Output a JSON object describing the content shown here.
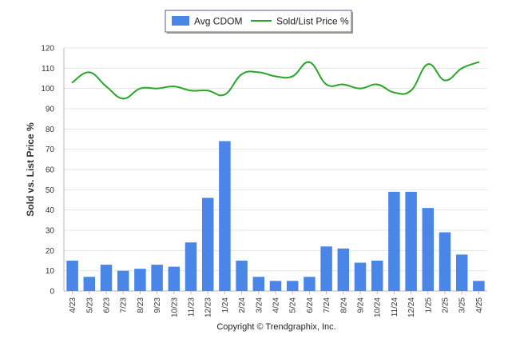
{
  "chart_data": {
    "type": "bar",
    "ylabel": "Sold vs. List Price %",
    "ylim": [
      0,
      120
    ],
    "yticks": [
      0,
      10,
      20,
      30,
      40,
      50,
      60,
      70,
      80,
      90,
      100,
      110,
      120
    ],
    "grid": true,
    "legend_position": "top-center",
    "categories": [
      "4/23",
      "5/23",
      "6/23",
      "7/23",
      "8/23",
      "9/23",
      "10/23",
      "11/23",
      "12/23",
      "1/24",
      "2/24",
      "3/24",
      "4/24",
      "5/24",
      "6/24",
      "7/24",
      "8/24",
      "9/24",
      "10/24",
      "11/24",
      "12/24",
      "1/25",
      "2/25",
      "3/25",
      "4/25"
    ],
    "series": [
      {
        "name": "Avg CDOM",
        "type": "bar",
        "color": "#4a86e8",
        "values": [
          15,
          7,
          13,
          10,
          11,
          13,
          12,
          24,
          46,
          74,
          15,
          7,
          5,
          5,
          7,
          22,
          21,
          14,
          15,
          49,
          49,
          41,
          29,
          18,
          5
        ]
      },
      {
        "name": "Sold/List Price %",
        "type": "line",
        "color": "#2aa52a",
        "values": [
          103,
          108,
          101,
          95,
          100,
          100,
          101,
          99,
          99,
          97,
          107,
          108,
          106,
          106,
          113,
          102,
          102,
          100,
          102,
          98,
          99,
          112,
          104,
          110,
          113
        ]
      }
    ]
  },
  "footer": {
    "copyright": "Copyright © Trendgraphix, Inc."
  }
}
